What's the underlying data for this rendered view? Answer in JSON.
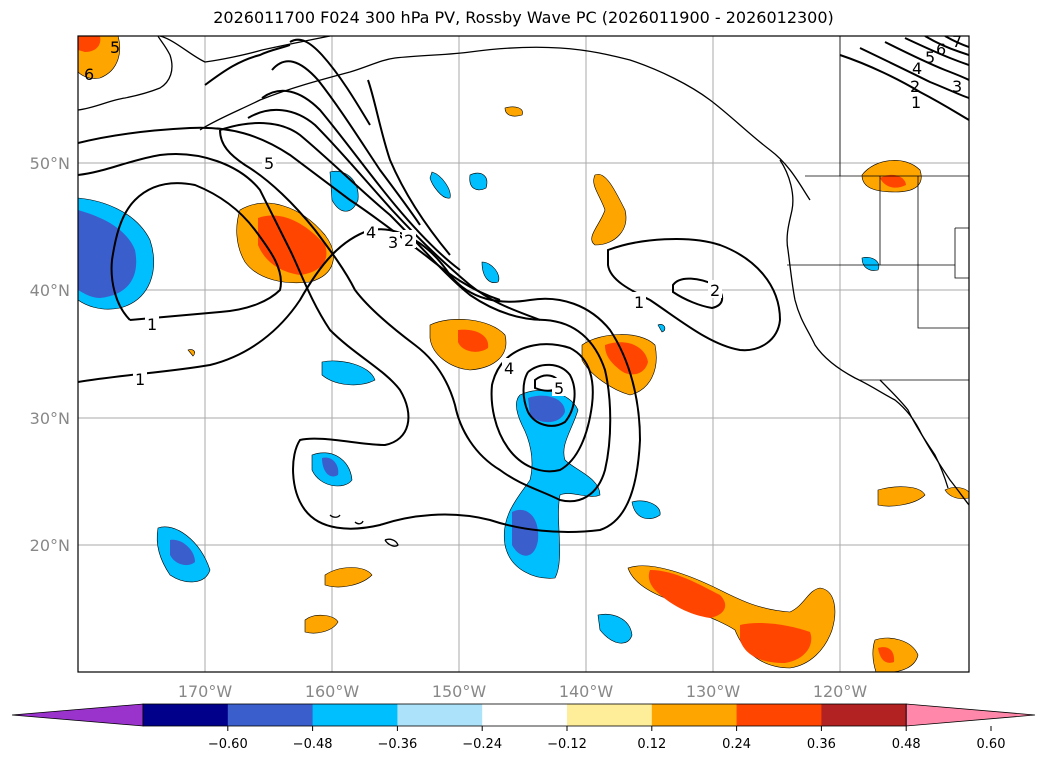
{
  "title": "2026011700 F024 300 hPa PV, Rossby Wave PC (2026011900 - 2026012300)",
  "lat_labels": [
    "50°N",
    "40°N",
    "30°N",
    "20°N"
  ],
  "lon_labels": [
    "170°W",
    "160°W",
    "150°W",
    "140°W",
    "130°W",
    "120°W"
  ],
  "colorbar": {
    "ticks": [
      "−0.60",
      "−0.48",
      "−0.36",
      "−0.24",
      "−0.12",
      "0.12",
      "0.24",
      "0.36",
      "0.48",
      "0.60"
    ],
    "colors": [
      "#9933cc",
      "#00008b",
      "#3a5fcd",
      "#00bfff",
      "#ade3fa",
      "#ffffff",
      "#ffee99",
      "#ffa500",
      "#ff4500",
      "#b22222",
      "#ff88aa"
    ]
  },
  "contour_labels": {
    "c1a": "1",
    "c1b": "1",
    "c1c": "1",
    "c2a": "2",
    "c3a": "3",
    "c4a": "4",
    "c4b": "4",
    "c5a": "5",
    "c5b": "5",
    "c5c": "5",
    "c6a": "6",
    "ne1": "1",
    "ne2": "2",
    "ne3": "3",
    "ne4": "4",
    "ne5": "5",
    "ne6": "6",
    "ne7": "7"
  }
}
